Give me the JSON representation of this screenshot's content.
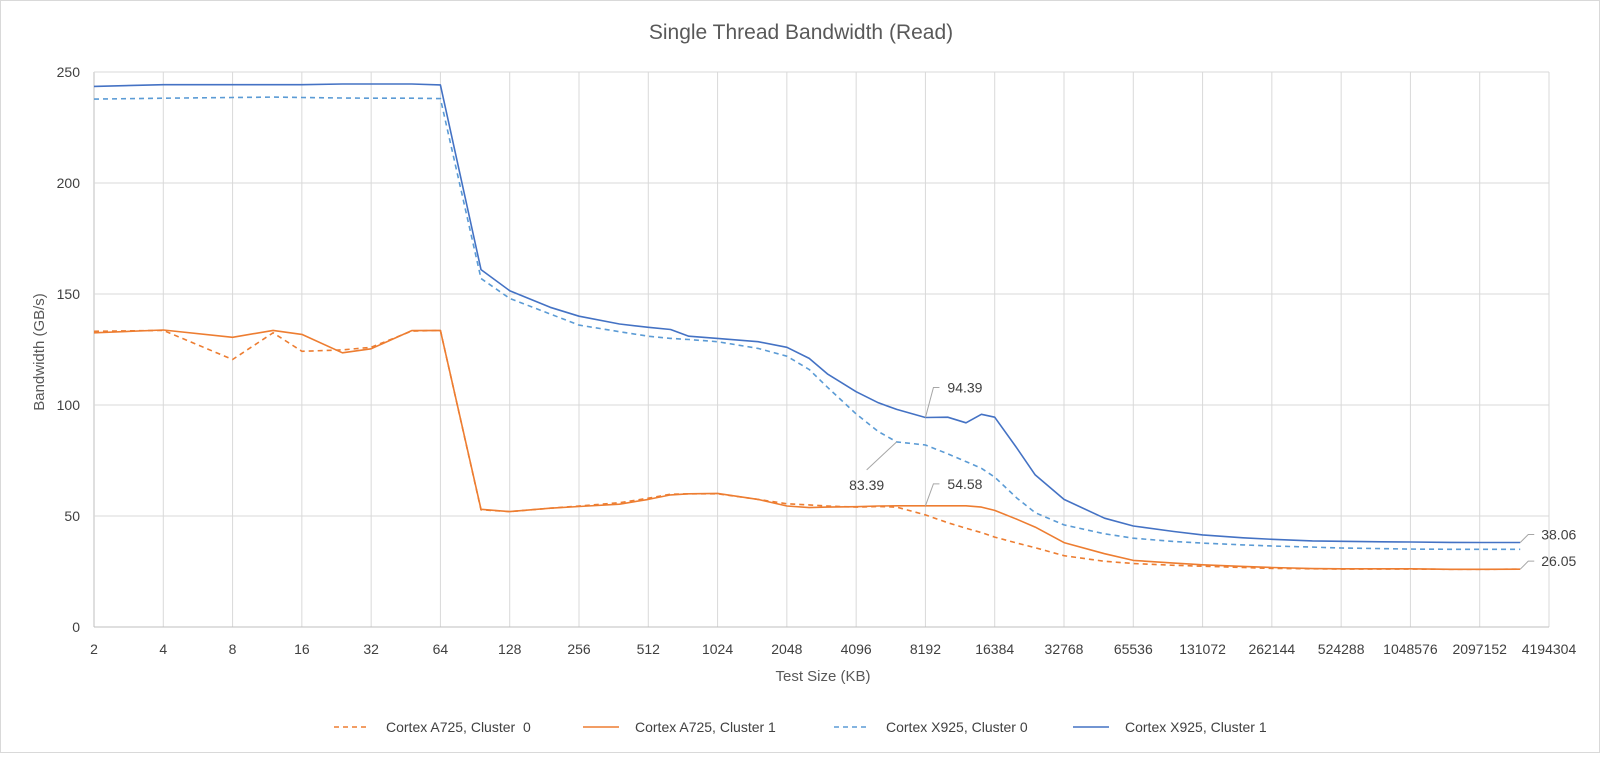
{
  "chart_data": {
    "type": "line",
    "title": "Single Thread Bandwidth (Read)",
    "xlabel": "Test Size (KB)",
    "ylabel": "Bandwidth (GB/s)",
    "x_scale": "log2",
    "x_ticks": [
      2,
      4,
      8,
      16,
      32,
      64,
      128,
      256,
      512,
      1024,
      2048,
      4096,
      8192,
      16384,
      32768,
      65536,
      131072,
      262144,
      524288,
      1048576,
      2097152,
      4194304
    ],
    "ylim": [
      0,
      250
    ],
    "y_ticks": [
      0,
      50,
      100,
      150,
      200,
      250
    ],
    "grid": true,
    "legend_position": "bottom",
    "colors": {
      "a725": "#ED7D31",
      "x925_c0": "#5B9BD5",
      "x925_c1": "#4472C4"
    },
    "x": [
      2,
      4,
      8,
      12,
      16,
      24,
      32,
      48,
      64,
      96,
      128,
      192,
      256,
      384,
      512,
      640,
      768,
      1024,
      1536,
      2048,
      2560,
      3072,
      4096,
      5120,
      6144,
      8192,
      10240,
      12288,
      14336,
      16384,
      20480,
      24576,
      32768,
      49152,
      65536,
      98304,
      131072,
      196608,
      262144,
      393216,
      524288,
      786432,
      1048576,
      1572864,
      2097152,
      3145728
    ],
    "series": [
      {
        "name": "Cortex A725, Cluster  0",
        "dash": true,
        "values": [
          133.2,
          133.6,
          120.5,
          132.5,
          124.2,
          124.8,
          126.0,
          133.3,
          133.6,
          52.8,
          52.0,
          53.5,
          54.5,
          56.0,
          58.0,
          59.8,
          60.0,
          60.0,
          57.5,
          55.5,
          55.0,
          54.5,
          54.0,
          54.3,
          54.0,
          50.5,
          47.0,
          44.5,
          42.5,
          40.5,
          37.8,
          35.7,
          32.1,
          29.6,
          28.6,
          27.8,
          27.4,
          26.8,
          26.4,
          26.2,
          26.1,
          26.1,
          26.1,
          26.0,
          26.0,
          26.05
        ]
      },
      {
        "name": "Cortex A725, Cluster 1",
        "dash": false,
        "values": [
          132.5,
          133.8,
          130.5,
          133.6,
          131.8,
          123.5,
          125.3,
          133.5,
          133.6,
          53.0,
          52.0,
          53.5,
          54.3,
          55.3,
          57.5,
          59.5,
          60.0,
          60.2,
          57.5,
          54.5,
          53.8,
          54.0,
          54.2,
          54.5,
          54.6,
          54.58,
          54.6,
          54.6,
          54.0,
          52.5,
          48.5,
          45.0,
          38.0,
          33.0,
          30.0,
          28.8,
          28.0,
          27.3,
          26.8,
          26.3,
          26.2,
          26.2,
          26.2,
          26.0,
          26.0,
          26.05
        ]
      },
      {
        "name": "Cortex X925, Cluster 0",
        "dash": true,
        "values": [
          237.8,
          238.2,
          238.5,
          238.7,
          238.5,
          238.3,
          238.2,
          238.2,
          238.0,
          157.0,
          148.0,
          141.0,
          136.0,
          133.0,
          131.0,
          130.0,
          129.5,
          128.5,
          125.5,
          122.0,
          116.0,
          108.0,
          96.0,
          88.0,
          83.39,
          82.0,
          78.0,
          74.5,
          71.5,
          67.5,
          58.0,
          51.5,
          46.0,
          42.0,
          40.0,
          38.5,
          37.8,
          37.0,
          36.5,
          36.0,
          35.6,
          35.3,
          35.1,
          35.0,
          35.0,
          35.0
        ]
      },
      {
        "name": "Cortex X925, Cluster 1",
        "dash": false,
        "values": [
          243.5,
          244.3,
          244.3,
          244.3,
          244.3,
          244.6,
          244.6,
          244.6,
          244.2,
          161.0,
          151.5,
          144.0,
          140.0,
          136.5,
          135.0,
          134.0,
          131.0,
          130.0,
          128.5,
          126.0,
          121.0,
          114.0,
          106.0,
          101.0,
          98.0,
          94.39,
          94.5,
          92.0,
          95.8,
          94.5,
          80.5,
          68.5,
          57.5,
          49.0,
          45.5,
          43.0,
          41.5,
          40.2,
          39.5,
          38.8,
          38.6,
          38.4,
          38.3,
          38.1,
          38.06,
          38.06
        ]
      }
    ],
    "annotations": [
      {
        "text": "94.39",
        "series": 3,
        "x": 8192,
        "y": 94.39
      },
      {
        "text": "83.39",
        "series": 2,
        "x": 6144,
        "y": 83.39
      },
      {
        "text": "54.58",
        "series": 1,
        "x": 8192,
        "y": 54.58
      },
      {
        "text": "38.06",
        "series": 3,
        "x": 3145728,
        "y": 38.06
      },
      {
        "text": "26.05",
        "series": 1,
        "x": 3145728,
        "y": 26.05
      }
    ]
  }
}
